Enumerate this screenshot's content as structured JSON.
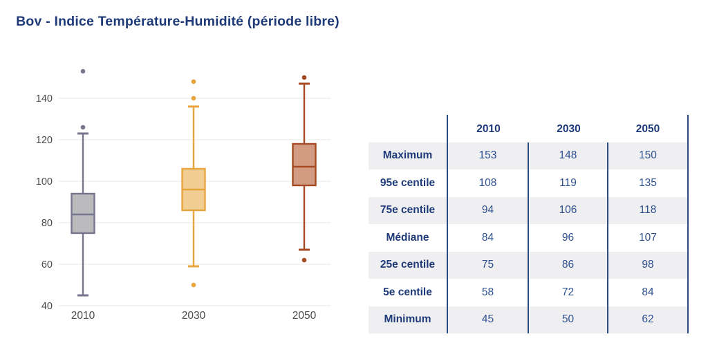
{
  "title": "Bov - Indice Température-Humidité (période libre)",
  "chart_data": {
    "type": "box",
    "title": "Bov - Indice Température-Humidité (période libre)",
    "categories": [
      "2010",
      "2030",
      "2050"
    ],
    "xlabel": "",
    "ylabel": "",
    "ylim": [
      40,
      158
    ],
    "yticks": [
      40,
      60,
      80,
      100,
      120,
      140
    ],
    "grid": "horizontal",
    "series": [
      {
        "name": "2010",
        "line_color": "#76768f",
        "fill_color": "#bababc",
        "whisker_low": 45,
        "q1": 75,
        "median": 84,
        "q3": 94,
        "whisker_high": 123,
        "outliers": [
          126,
          153
        ]
      },
      {
        "name": "2030",
        "line_color": "#e8a53c",
        "fill_color": "#f0cd92",
        "whisker_low": 59,
        "q1": 86,
        "median": 96,
        "q3": 106,
        "whisker_high": 136,
        "outliers": [
          50,
          140,
          148
        ]
      },
      {
        "name": "2050",
        "line_color": "#a54a22",
        "fill_color": "#d49b83",
        "whisker_low": 67,
        "q1": 98,
        "median": 107,
        "q3": 118,
        "whisker_high": 147,
        "outliers": [
          62,
          150
        ]
      }
    ]
  },
  "table": {
    "columns": [
      "",
      "2010",
      "2030",
      "2050"
    ],
    "rows": [
      {
        "label": "Maximum",
        "values": [
          "153",
          "148",
          "150"
        ]
      },
      {
        "label": "95e centile",
        "values": [
          "108",
          "119",
          "135"
        ]
      },
      {
        "label": "75e centile",
        "values": [
          "94",
          "106",
          "118"
        ]
      },
      {
        "label": "Médiane",
        "values": [
          "84",
          "96",
          "107"
        ]
      },
      {
        "label": "25e centile",
        "values": [
          "75",
          "86",
          "98"
        ]
      },
      {
        "label": "5e centile",
        "values": [
          "58",
          "72",
          "84"
        ]
      },
      {
        "label": "Minimum",
        "values": [
          "45",
          "50",
          "62"
        ]
      }
    ]
  },
  "colors": {
    "title_text": "#1e3a78",
    "table_label_text": "#1e3a78",
    "table_value_text": "#2d4f8e",
    "table_rule": "#2a4a80",
    "table_stripe_bg": "#efeff1",
    "axis_text": "#4a4a4a",
    "gridline": "#ececec"
  }
}
